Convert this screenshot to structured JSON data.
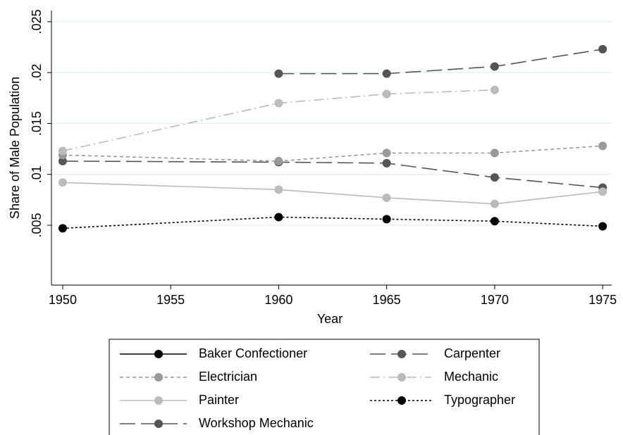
{
  "chart_data": {
    "type": "line",
    "x_label": "Year",
    "y_label": "Share of Male Population",
    "xlim": [
      1949.48,
      1975.42
    ],
    "xticks": [
      1950,
      1955,
      1960,
      1965,
      1970,
      1975
    ],
    "ylim": [
      -0.00088,
      0.0261
    ],
    "yticks": [
      {
        "value": 0.005,
        "label": ".005"
      },
      {
        "value": 0.01,
        "label": ".01"
      },
      {
        "value": 0.015,
        "label": ".015"
      },
      {
        "value": 0.02,
        "label": ".02"
      },
      {
        "value": 0.025,
        "label": ".025"
      }
    ],
    "grid": true,
    "legend": "bottom",
    "x": [
      1950,
      1960,
      1965,
      1970,
      1975
    ],
    "series": [
      {
        "name": "Baker Confectioner",
        "color": "#000000",
        "line_style": "solid",
        "values": [
          null,
          null,
          null,
          null,
          null
        ]
      },
      {
        "name": "Carpenter",
        "color": "#555555",
        "line_style": "longdash",
        "values": [
          0.0113,
          0.0112,
          0.0111,
          0.0097,
          0.0087
        ]
      },
      {
        "name": "Electrician",
        "color": "#999999",
        "line_style": "shortdash",
        "values": [
          0.0119,
          0.0113,
          0.0121,
          0.0121,
          0.0128
        ]
      },
      {
        "name": "Mechanic",
        "color": "#bbbbbb",
        "line_style": "dashdot",
        "values": [
          0.0123,
          0.017,
          0.0179,
          0.0183,
          null
        ]
      },
      {
        "name": "Painter",
        "color": "#bbbbbb",
        "line_style": "solid",
        "values": [
          0.0092,
          0.0085,
          0.0077,
          0.0071,
          0.0083
        ]
      },
      {
        "name": "Typographer",
        "color": "#000000",
        "line_style": "dot",
        "values": [
          0.0047,
          0.0058,
          0.0056,
          0.0054,
          0.0049
        ]
      },
      {
        "name": "Workshop Mechanic",
        "color": "#555555",
        "line_style": "longdash",
        "values": [
          null,
          0.0199,
          0.0199,
          0.0206,
          0.0223
        ]
      }
    ]
  }
}
